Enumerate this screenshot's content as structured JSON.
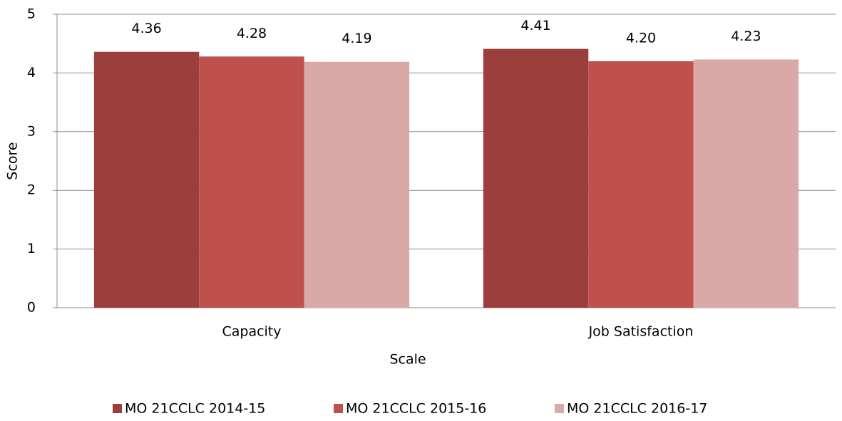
{
  "chart_data": {
    "type": "bar",
    "x_label": "Scale",
    "y_label": "Score",
    "categories": [
      "Capacity",
      "Job Satisfaction"
    ],
    "series": [
      {
        "name": "MO 21CCLC 2014-15",
        "color": "#9b3f3c",
        "values": [
          4.36,
          4.41
        ],
        "value_labels": [
          "4.36",
          "4.41"
        ]
      },
      {
        "name": "MO 21CCLC 2015-16",
        "color": "#c0504d",
        "values": [
          4.28,
          4.2
        ],
        "value_labels": [
          "4.28",
          "4.20"
        ]
      },
      {
        "name": "MO 21CCLC 2016-17",
        "color": "#d9a9a8",
        "values": [
          4.19,
          4.23
        ],
        "value_labels": [
          "4.19",
          "4.23"
        ]
      }
    ],
    "ylim": [
      0,
      5
    ],
    "yticks": [
      0,
      1,
      2,
      3,
      4,
      5
    ],
    "grid": true,
    "legend": "bottom"
  }
}
